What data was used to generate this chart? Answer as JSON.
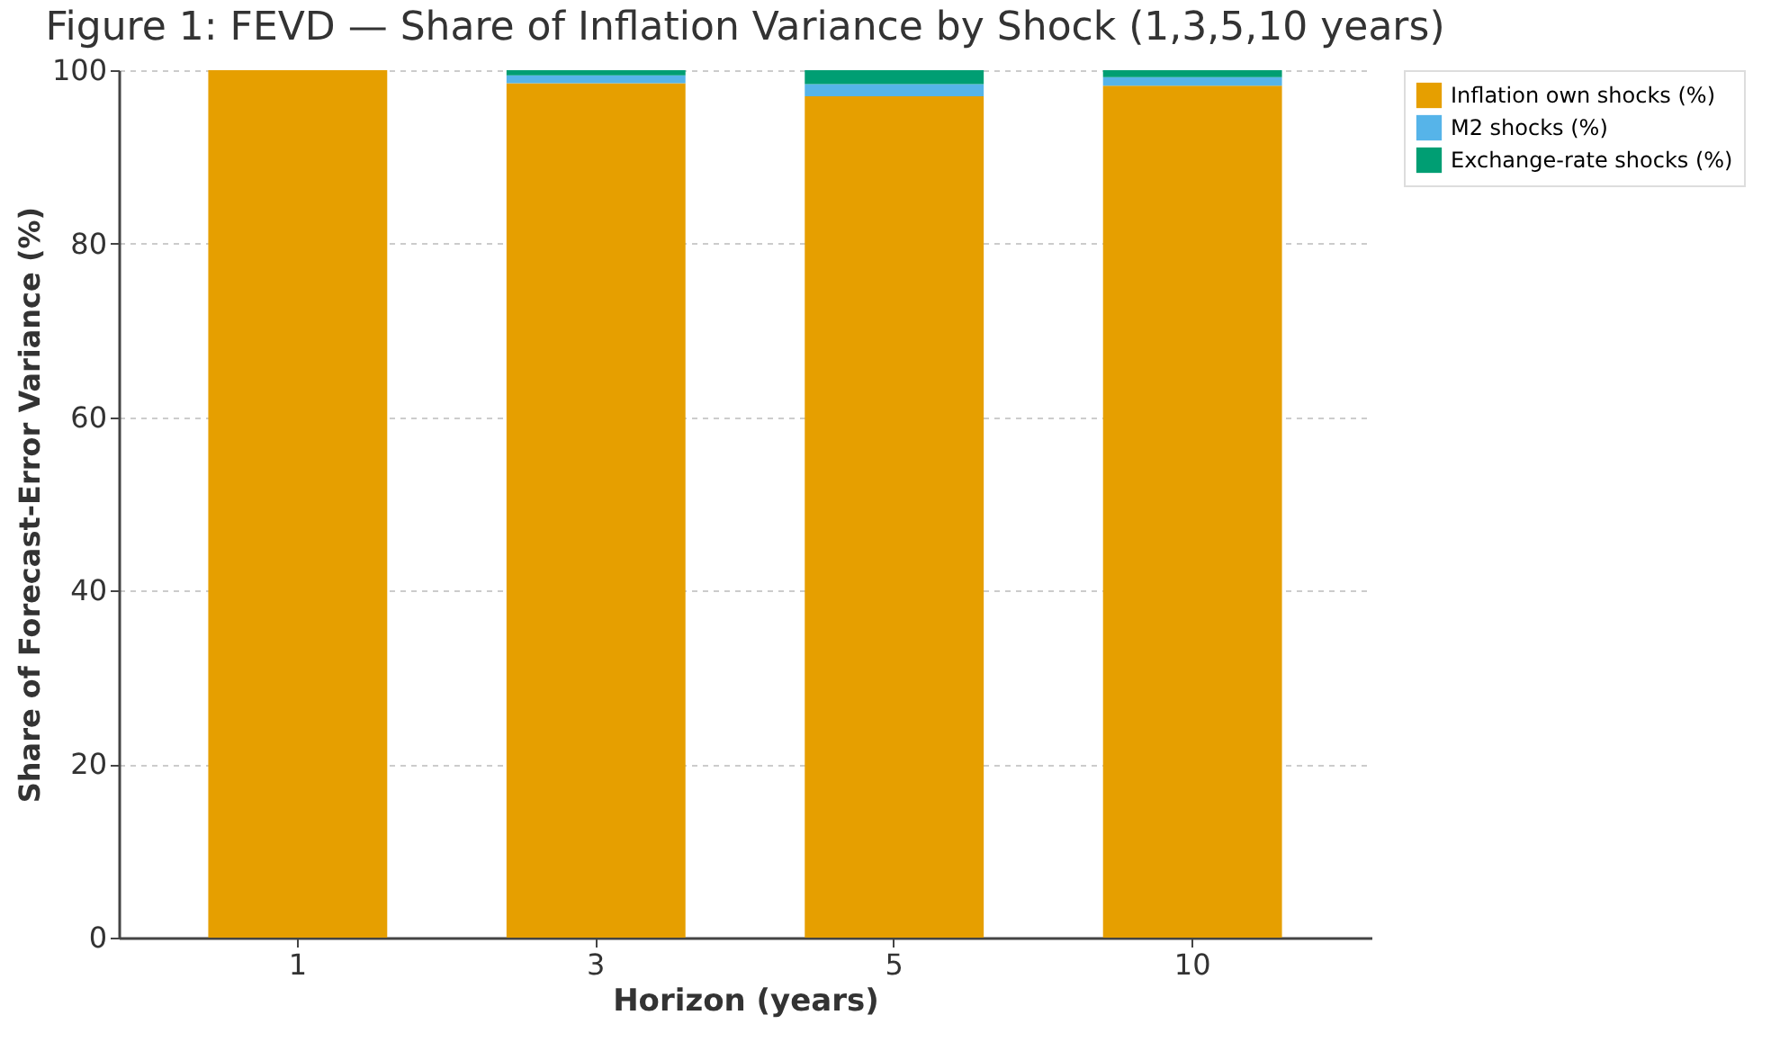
{
  "chart_data": {
    "type": "bar",
    "title": "Figure 1: FEVD — Share of Inflation Variance by Shock (1,3,5,10 years)",
    "xlabel": "Horizon (years)",
    "ylabel": "Share of Forecast-Error Variance (%)",
    "categories": [
      "1",
      "3",
      "5",
      "10"
    ],
    "stacked": true,
    "series": [
      {
        "name": "Inflation own shocks (%)",
        "color": "#e69f00",
        "values": [
          100,
          98.5,
          97,
          98.2
        ]
      },
      {
        "name": "M2 shocks (%)",
        "color": "#56b4e9",
        "values": [
          0,
          0.9,
          1.4,
          1.0
        ]
      },
      {
        "name": "Exchange-rate shocks (%)",
        "color": "#009e73",
        "values": [
          0,
          0.6,
          1.6,
          0.8
        ]
      }
    ],
    "ylim": [
      0,
      100
    ],
    "yticks": [
      0,
      20,
      40,
      60,
      80,
      100
    ],
    "grid": "y",
    "legend": "top right"
  }
}
